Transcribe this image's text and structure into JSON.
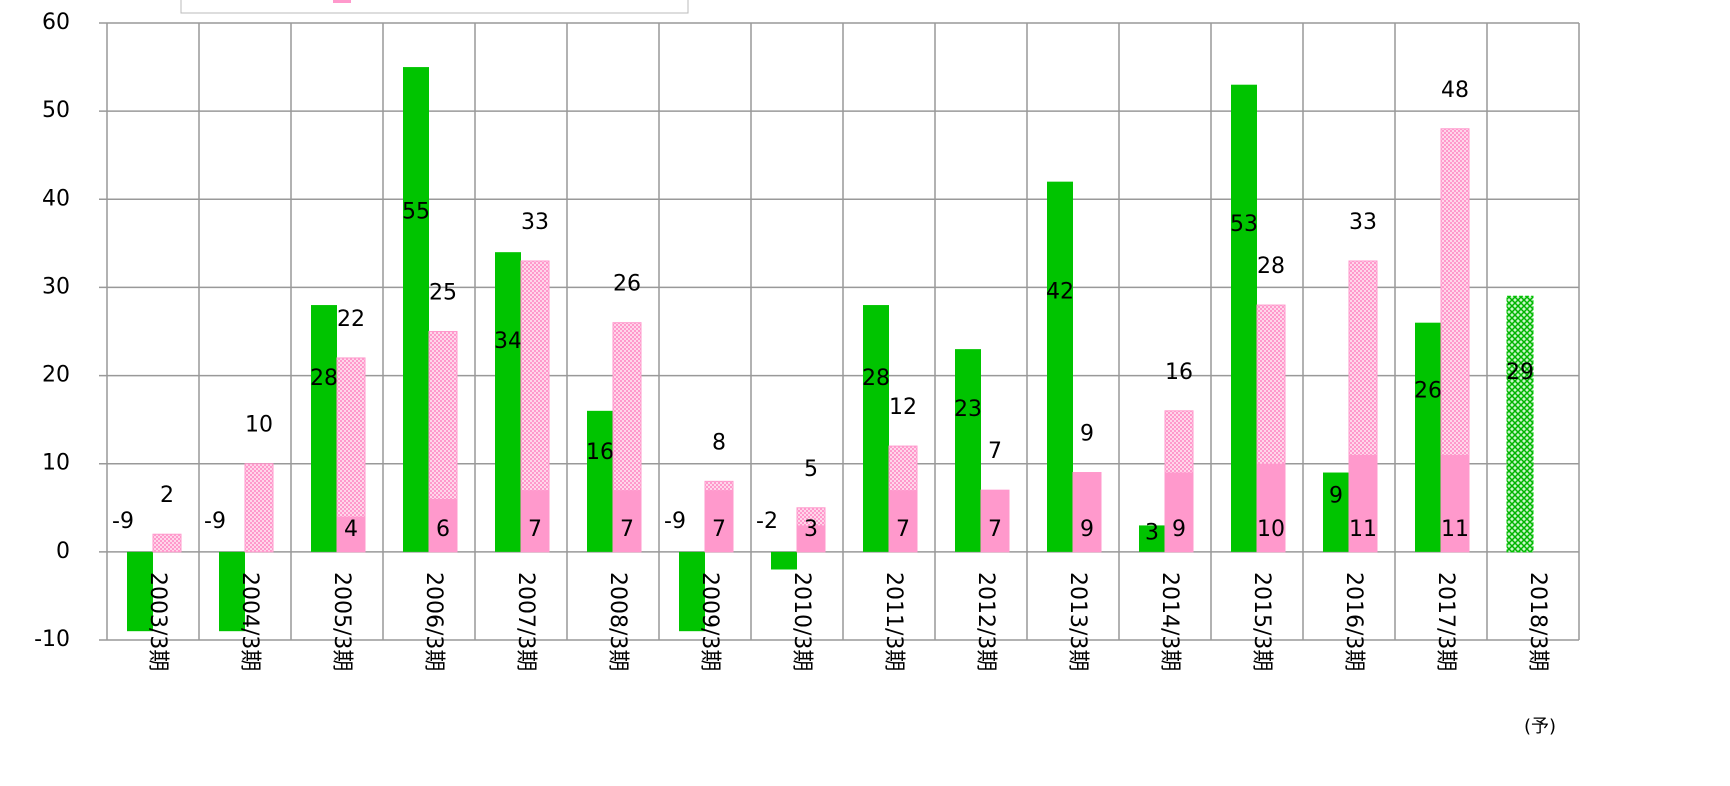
{
  "chart_data": {
    "type": "bar",
    "categories": [
      "2003/3期",
      "2004/3期",
      "2005/3期",
      "2006/3期",
      "2007/3期",
      "2008/3期",
      "2009/3期",
      "2010/3期",
      "2011/3期",
      "2012/3期",
      "2013/3期",
      "2014/3期",
      "2015/3期",
      "2016/3期",
      "2017/3期",
      "2018/3期"
    ],
    "annotation": "(予)",
    "series": [
      {
        "color": "#00c400",
        "values": [
          -9,
          -9,
          28,
          55,
          34,
          16,
          -9,
          -2,
          28,
          23,
          42,
          3,
          53,
          9,
          26,
          null
        ]
      },
      {
        "color": "#00c400",
        "pattern": "hatch",
        "values": [
          null,
          null,
          null,
          null,
          null,
          null,
          null,
          null,
          null,
          null,
          null,
          null,
          null,
          null,
          null,
          29
        ]
      },
      {
        "color": "#ff99cc",
        "pattern": "hatch",
        "values": [
          2,
          10,
          22,
          25,
          33,
          26,
          8,
          5,
          12,
          7,
          9,
          16,
          28,
          33,
          48,
          null
        ]
      },
      {
        "color": "#ff99cc",
        "values": [
          null,
          null,
          4,
          6,
          7,
          7,
          7,
          3,
          7,
          7,
          9,
          9,
          10,
          11,
          11,
          null
        ]
      }
    ],
    "ylim": [
      -10,
      60
    ],
    "yticks": [
      -10,
      0,
      10,
      20,
      30,
      40,
      50,
      60
    ],
    "grid": true
  }
}
